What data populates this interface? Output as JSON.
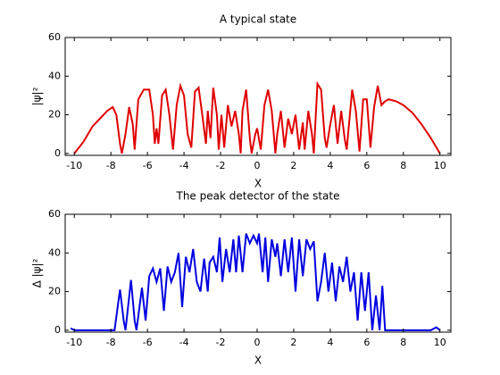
{
  "chart_data": [
    {
      "type": "line",
      "title": "A typical state",
      "x_label": "X",
      "y_label": "|ψ|²",
      "color": "#e00000",
      "xlim": [
        -10.5,
        10.6
      ],
      "ylim": [
        -1,
        60
      ],
      "xticks": [
        -10,
        -8,
        -6,
        -4,
        -2,
        0,
        2,
        4,
        6,
        8,
        10
      ],
      "yticks": [
        0,
        20,
        40,
        60
      ],
      "x": [
        -10,
        -9.5,
        -9,
        -8.5,
        -8.2,
        -7.9,
        -7.7,
        -7.5,
        -7.4,
        -7.2,
        -7.0,
        -6.8,
        -6.7,
        -6.5,
        -6.2,
        -5.9,
        -5.7,
        -5.6,
        -5.5,
        -5.4,
        -5.2,
        -5.0,
        -4.8,
        -4.6,
        -4.4,
        -4.2,
        -4.0,
        -3.8,
        -3.6,
        -3.4,
        -3.2,
        -3.0,
        -2.8,
        -2.7,
        -2.55,
        -2.4,
        -2.2,
        -2.1,
        -1.95,
        -1.8,
        -1.6,
        -1.4,
        -1.2,
        -1.0,
        -0.9,
        -0.8,
        -0.6,
        -0.4,
        -0.3,
        -0.1,
        0,
        0.2,
        0.4,
        0.6,
        0.8,
        1.0,
        1.1,
        1.3,
        1.5,
        1.7,
        1.9,
        2.1,
        2.3,
        2.5,
        2.6,
        2.8,
        3.0,
        3.1,
        3.3,
        3.5,
        3.7,
        3.8,
        4.0,
        4.2,
        4.4,
        4.6,
        4.8,
        4.9,
        5.2,
        5.4,
        5.6,
        5.8,
        6.0,
        6.2,
        6.4,
        6.6,
        6.8,
        7.0,
        7.2,
        7.6,
        8.0,
        8.5,
        9.0,
        9.5,
        10
      ],
      "values": [
        0,
        6,
        14,
        19,
        22,
        24,
        20,
        5,
        0,
        10,
        24,
        15,
        2,
        28,
        33,
        33,
        20,
        5,
        13,
        5,
        30,
        33,
        20,
        2,
        25,
        35,
        30,
        10,
        3,
        32,
        34,
        20,
        5,
        22,
        8,
        34,
        20,
        2,
        20,
        3,
        25,
        14,
        22,
        10,
        0,
        22,
        33,
        8,
        0,
        10,
        13,
        2,
        25,
        33,
        22,
        0,
        10,
        22,
        3,
        18,
        10,
        20,
        2,
        16,
        2,
        22,
        10,
        0,
        36,
        33,
        8,
        3,
        15,
        25,
        5,
        22,
        7,
        2,
        33,
        22,
        1,
        28,
        28,
        3,
        24,
        35,
        25,
        27,
        28,
        27,
        25,
        21,
        15,
        8,
        0
      ]
    },
    {
      "type": "line",
      "title": "The peak detector of the state",
      "x_label": "X",
      "y_label": "Δ |ψ|²",
      "color": "#0000e0",
      "xlim": [
        -10.5,
        10.6
      ],
      "ylim": [
        -1,
        60
      ],
      "xticks": [
        -10,
        -8,
        -6,
        -4,
        -2,
        0,
        2,
        4,
        6,
        8,
        10
      ],
      "yticks": [
        0,
        20,
        40,
        60
      ],
      "x": [
        -10.2,
        -10,
        -7.8,
        -7.5,
        -7.3,
        -7.2,
        -6.9,
        -6.7,
        -6.6,
        -6.3,
        -6.1,
        -5.9,
        -5.7,
        -5.5,
        -5.3,
        -5.1,
        -4.9,
        -4.7,
        -4.5,
        -4.3,
        -4.1,
        -3.9,
        -3.7,
        -3.5,
        -3.3,
        -3.1,
        -2.9,
        -2.7,
        -2.6,
        -2.4,
        -2.2,
        -2.05,
        -1.9,
        -1.7,
        -1.5,
        -1.3,
        -1.15,
        -1.0,
        -0.8,
        -0.6,
        -0.4,
        -0.2,
        0,
        0.1,
        0.3,
        0.45,
        0.6,
        0.8,
        1.0,
        1.1,
        1.3,
        1.5,
        1.7,
        1.9,
        2.1,
        2.3,
        2.5,
        2.7,
        2.9,
        3.1,
        3.3,
        3.5,
        3.7,
        3.9,
        4.1,
        4.3,
        4.5,
        4.7,
        4.9,
        5.1,
        5.3,
        5.5,
        5.7,
        5.9,
        6.1,
        6.3,
        6.5,
        6.7,
        6.85,
        7.0,
        9.5,
        9.8,
        10
      ],
      "values": [
        1,
        0,
        0,
        21,
        5,
        0,
        26,
        5,
        0,
        22,
        5,
        28,
        32,
        25,
        32,
        10,
        33,
        25,
        30,
        40,
        12,
        38,
        30,
        42,
        25,
        20,
        37,
        20,
        35,
        38,
        30,
        48,
        25,
        42,
        30,
        47,
        30,
        49,
        30,
        50,
        45,
        49,
        45,
        50,
        30,
        48,
        25,
        47,
        38,
        45,
        28,
        47,
        30,
        48,
        20,
        47,
        28,
        47,
        42,
        46,
        15,
        25,
        40,
        20,
        35,
        15,
        33,
        25,
        38,
        20,
        30,
        5,
        30,
        10,
        30,
        0,
        18,
        0,
        23,
        0,
        0,
        1.5,
        0
      ]
    }
  ]
}
